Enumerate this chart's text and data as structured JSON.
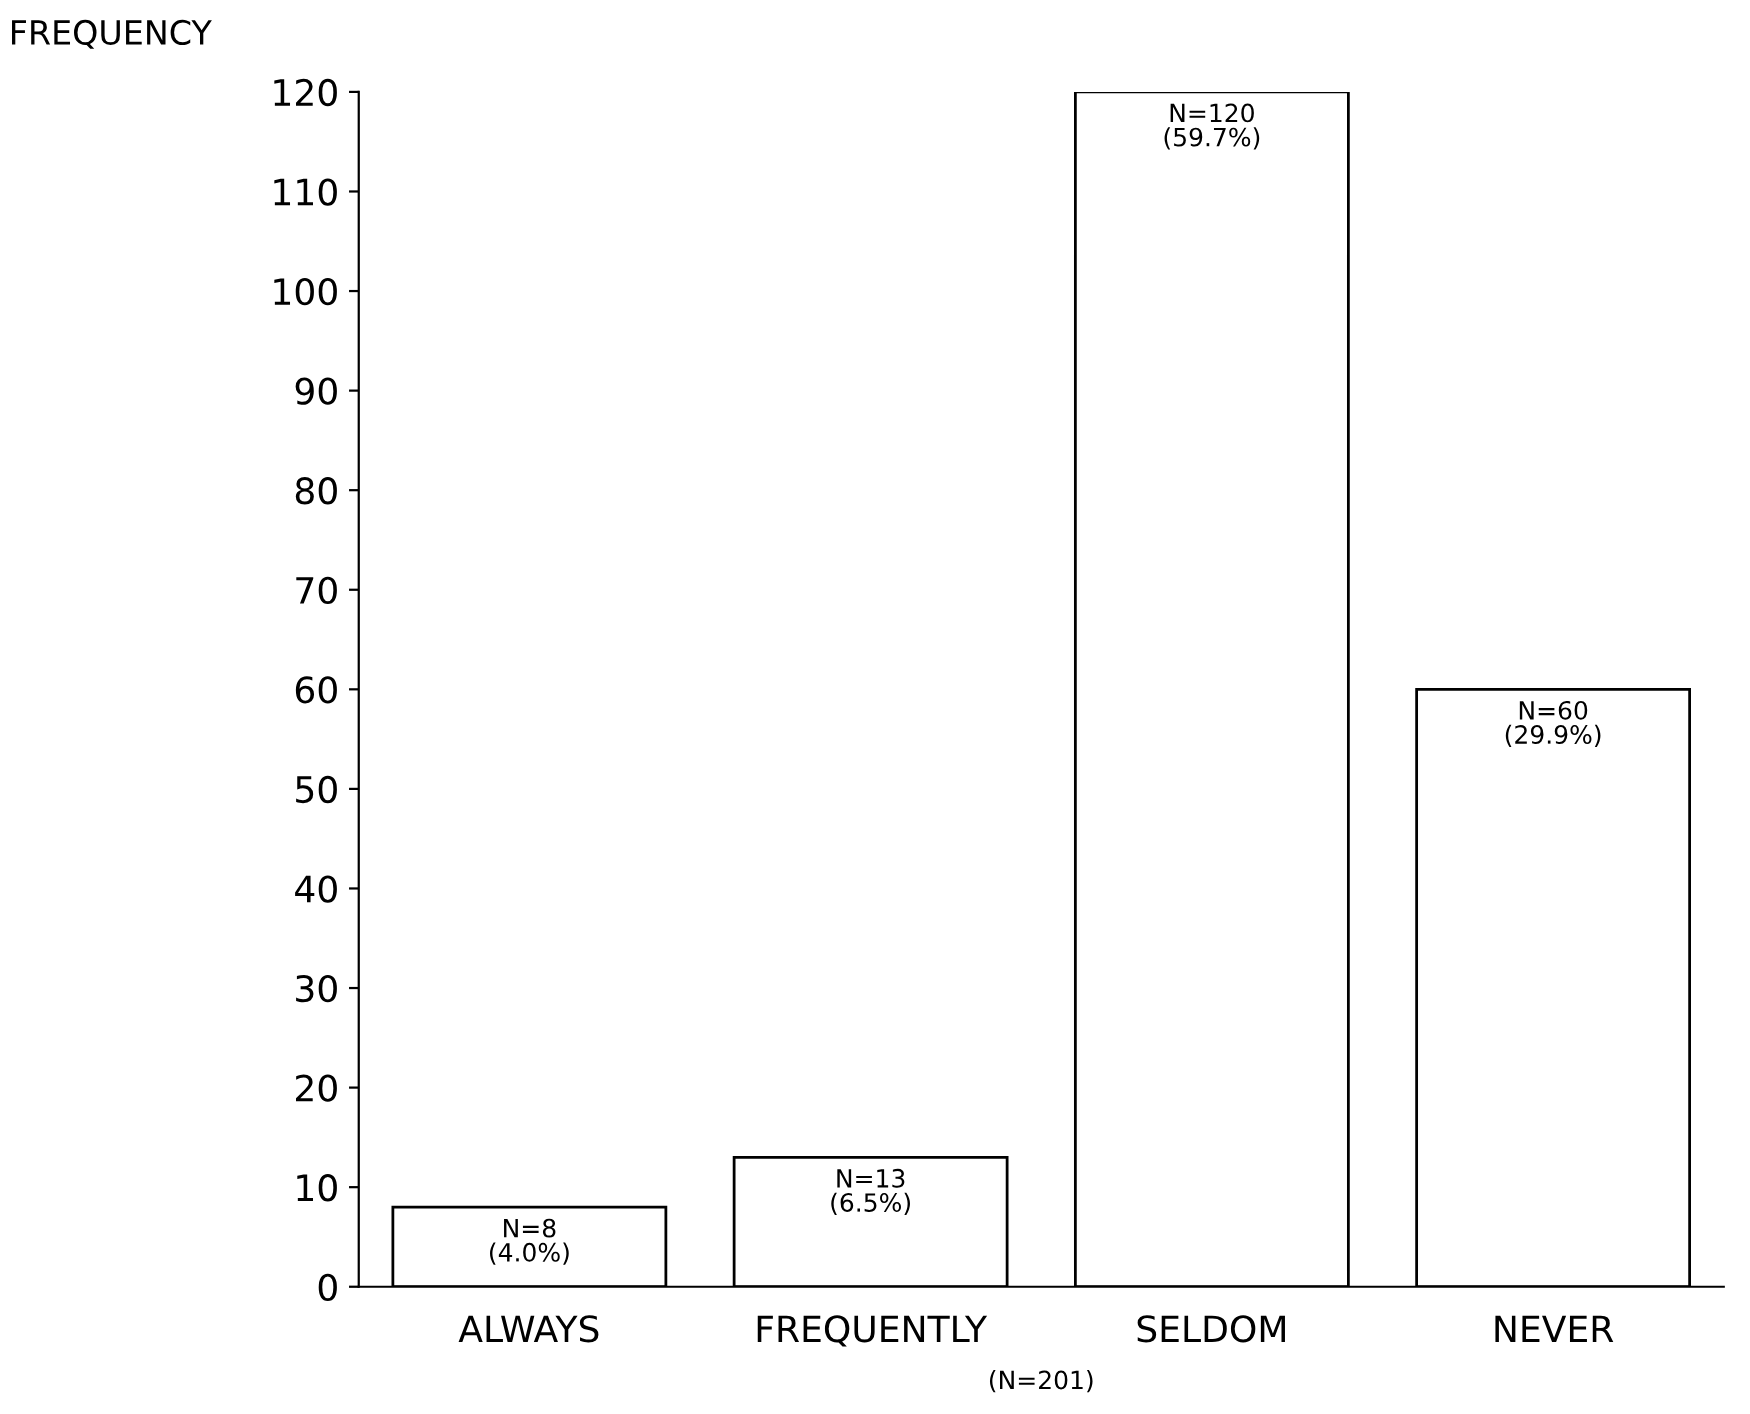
{
  "chart_data": {
    "type": "bar",
    "ylabel": "FREQUENCY",
    "categories": [
      "ALWAYS",
      "FREQUENTLY",
      "SELDOM",
      "NEVER"
    ],
    "values": [
      8,
      13,
      120,
      60
    ],
    "value_labels": [
      "N=8\n(4.0%)",
      "N=13\n(6.5%)",
      "N=120\n(59.7%)",
      "N=60\n(29.9%)"
    ],
    "color": "#ffffff",
    "ylim": [
      0,
      120
    ],
    "yticks": [
      0,
      10,
      20,
      30,
      40,
      50,
      60,
      70,
      80,
      90,
      100,
      110,
      120
    ],
    "grid": false,
    "annotations": [
      "(N=201)"
    ]
  }
}
